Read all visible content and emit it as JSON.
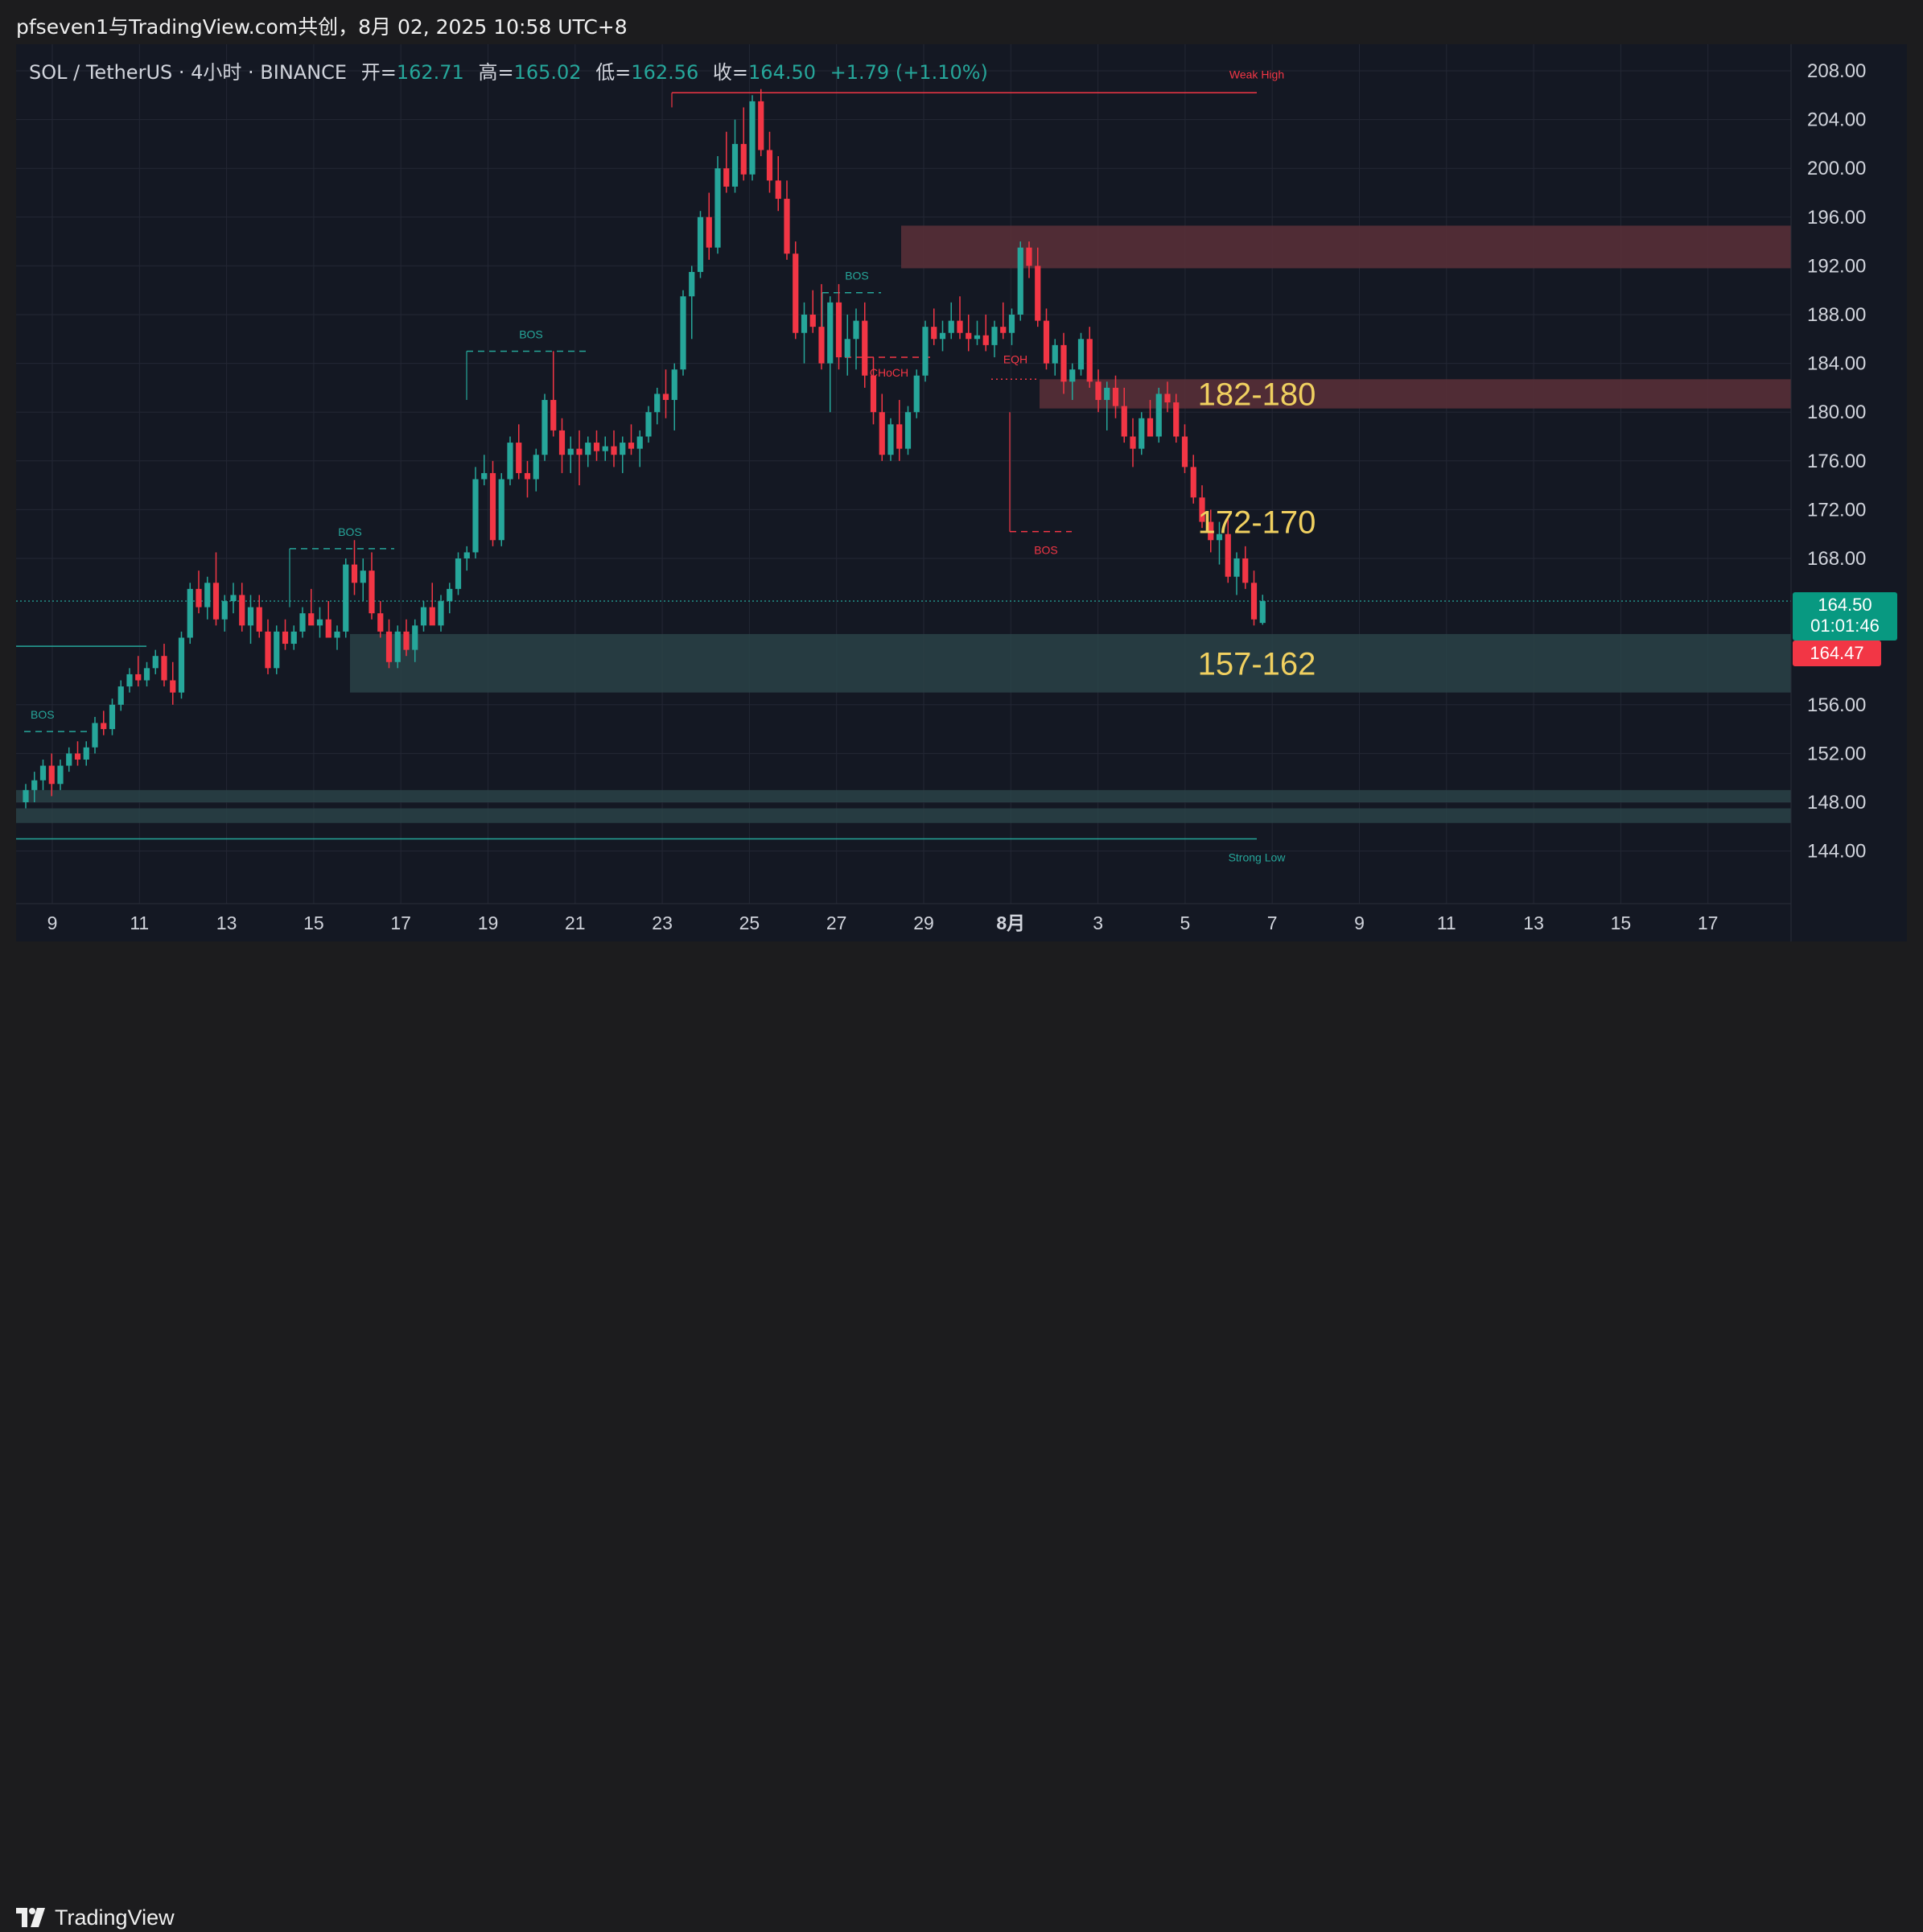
{
  "header": {
    "attribution": "pfseven1与TradingView.com共创，8月 02, 2025 10:58 UTC+8"
  },
  "legend": {
    "symbol": "SOL / TetherUS · 4小时 · BINANCE",
    "open_label": "开=",
    "open": "162.71",
    "high_label": "高=",
    "high": "165.02",
    "low_label": "低=",
    "low": "162.56",
    "close_label": "收=",
    "close": "164.50",
    "change": "+1.79 (+1.10%)"
  },
  "price_axis": {
    "labels": [
      "208.00",
      "204.00",
      "200.00",
      "196.00",
      "192.00",
      "188.00",
      "184.00",
      "180.00",
      "176.00",
      "172.00",
      "168.00",
      "156.00",
      "152.00",
      "148.00",
      "144.00"
    ],
    "current_price": "164.50",
    "countdown": "01:01:46",
    "bid_price": "164.47"
  },
  "time_axis": {
    "labels": [
      "9",
      "11",
      "13",
      "15",
      "17",
      "19",
      "21",
      "23",
      "25",
      "27",
      "29",
      "8月",
      "3",
      "5",
      "7",
      "9",
      "11",
      "13",
      "15",
      "17"
    ]
  },
  "colors": {
    "up": "#26a69a",
    "down": "#f23645",
    "zone_supply": "#5a3038",
    "zone_demand": "#2a4548",
    "zone_label": "#f0d060",
    "background": "#141823"
  },
  "footer": {
    "brand": "TradingView"
  },
  "chart_data": {
    "type": "candlestick",
    "symbol": "SOL/USDT",
    "interval": "4h",
    "ylim": [
      141.5,
      209.5
    ],
    "x_ticks": [
      "9",
      "11",
      "13",
      "15",
      "17",
      "19",
      "21",
      "23",
      "25",
      "27",
      "29",
      "8月",
      "3",
      "5",
      "7",
      "9",
      "11",
      "13",
      "15",
      "17"
    ],
    "candles": [
      [
        148.0,
        149.5,
        147.5,
        149.0
      ],
      [
        149.0,
        150.5,
        148.0,
        149.8
      ],
      [
        149.8,
        151.5,
        149.0,
        151.0
      ],
      [
        151.0,
        152.0,
        148.5,
        149.5
      ],
      [
        149.5,
        151.5,
        149.0,
        151.0
      ],
      [
        151.0,
        152.5,
        150.5,
        152.0
      ],
      [
        152.0,
        153.0,
        151.0,
        151.5
      ],
      [
        151.5,
        153.0,
        151.0,
        152.5
      ],
      [
        152.5,
        155.0,
        152.0,
        154.5
      ],
      [
        154.5,
        155.5,
        153.5,
        154.0
      ],
      [
        154.0,
        156.5,
        153.5,
        156.0
      ],
      [
        156.0,
        158.0,
        155.5,
        157.5
      ],
      [
        157.5,
        159.0,
        157.0,
        158.5
      ],
      [
        158.5,
        160.0,
        157.5,
        158.0
      ],
      [
        158.0,
        159.5,
        157.5,
        159.0
      ],
      [
        159.0,
        160.5,
        158.5,
        160.0
      ],
      [
        160.0,
        161.0,
        157.5,
        158.0
      ],
      [
        158.0,
        159.5,
        156.0,
        157.0
      ],
      [
        157.0,
        162.0,
        156.5,
        161.5
      ],
      [
        161.5,
        166.0,
        161.0,
        165.5
      ],
      [
        165.5,
        167.0,
        163.5,
        164.0
      ],
      [
        164.0,
        166.5,
        163.0,
        166.0
      ],
      [
        166.0,
        168.5,
        162.5,
        163.0
      ],
      [
        163.0,
        165.0,
        162.0,
        164.5
      ],
      [
        164.5,
        166.0,
        163.5,
        165.0
      ],
      [
        165.0,
        166.0,
        162.0,
        162.5
      ],
      [
        162.5,
        165.0,
        161.0,
        164.0
      ],
      [
        164.0,
        165.0,
        161.5,
        162.0
      ],
      [
        162.0,
        163.0,
        158.5,
        159.0
      ],
      [
        159.0,
        162.5,
        158.5,
        162.0
      ],
      [
        162.0,
        163.0,
        160.5,
        161.0
      ],
      [
        161.0,
        162.5,
        160.5,
        162.0
      ],
      [
        162.0,
        164.0,
        161.5,
        163.5
      ],
      [
        163.5,
        165.5,
        163.0,
        162.5
      ],
      [
        162.5,
        164.0,
        161.5,
        163.0
      ],
      [
        163.0,
        164.5,
        162.0,
        161.5
      ],
      [
        161.5,
        162.5,
        160.5,
        162.0
      ],
      [
        162.0,
        168.0,
        161.5,
        167.5
      ],
      [
        167.5,
        169.5,
        165.0,
        166.0
      ],
      [
        166.0,
        168.0,
        164.5,
        167.0
      ],
      [
        167.0,
        168.5,
        163.0,
        163.5
      ],
      [
        163.5,
        164.5,
        161.5,
        162.0
      ],
      [
        162.0,
        163.0,
        159.0,
        159.5
      ],
      [
        159.5,
        162.5,
        159.0,
        162.0
      ],
      [
        162.0,
        163.0,
        160.0,
        160.5
      ],
      [
        160.5,
        163.0,
        159.5,
        162.5
      ],
      [
        162.5,
        164.5,
        162.0,
        164.0
      ],
      [
        164.0,
        166.0,
        163.0,
        162.5
      ],
      [
        162.5,
        165.0,
        162.0,
        164.5
      ],
      [
        164.5,
        166.0,
        163.5,
        165.5
      ],
      [
        165.5,
        168.5,
        165.0,
        168.0
      ],
      [
        168.0,
        169.0,
        167.0,
        168.5
      ],
      [
        168.5,
        175.5,
        168.0,
        174.5
      ],
      [
        174.5,
        176.5,
        174.0,
        175.0
      ],
      [
        175.0,
        176.0,
        169.0,
        169.5
      ],
      [
        169.5,
        175.0,
        169.0,
        174.5
      ],
      [
        174.5,
        178.0,
        174.0,
        177.5
      ],
      [
        177.5,
        179.0,
        174.5,
        175.0
      ],
      [
        175.0,
        176.0,
        173.0,
        174.5
      ],
      [
        174.5,
        177.0,
        173.5,
        176.5
      ],
      [
        176.5,
        181.5,
        176.0,
        181.0
      ],
      [
        181.0,
        185.0,
        178.0,
        178.5
      ],
      [
        178.5,
        179.5,
        175.0,
        176.5
      ],
      [
        176.5,
        178.0,
        175.0,
        177.0
      ],
      [
        177.0,
        178.5,
        174.0,
        176.5
      ],
      [
        176.5,
        178.0,
        175.5,
        177.5
      ],
      [
        177.5,
        178.5,
        176.0,
        176.8
      ],
      [
        176.8,
        178.0,
        176.0,
        177.2
      ],
      [
        177.2,
        178.5,
        175.5,
        176.5
      ],
      [
        176.5,
        178.0,
        175.0,
        177.5
      ],
      [
        177.5,
        179.0,
        176.5,
        177.0
      ],
      [
        177.0,
        178.5,
        175.5,
        178.0
      ],
      [
        178.0,
        180.5,
        177.5,
        180.0
      ],
      [
        180.0,
        182.0,
        179.0,
        181.5
      ],
      [
        181.5,
        183.5,
        179.5,
        181.0
      ],
      [
        181.0,
        184.0,
        178.5,
        183.5
      ],
      [
        183.5,
        190.0,
        183.0,
        189.5
      ],
      [
        189.5,
        192.0,
        186.0,
        191.5
      ],
      [
        191.5,
        196.5,
        191.0,
        196.0
      ],
      [
        196.0,
        198.0,
        192.5,
        193.5
      ],
      [
        193.5,
        201.0,
        193.0,
        200.0
      ],
      [
        200.0,
        203.0,
        198.0,
        198.5
      ],
      [
        198.5,
        204.0,
        198.0,
        202.0
      ],
      [
        202.0,
        205.0,
        199.0,
        199.5
      ],
      [
        199.5,
        206.0,
        199.0,
        205.5
      ],
      [
        205.5,
        206.5,
        201.0,
        201.5
      ],
      [
        201.5,
        203.0,
        198.0,
        199.0
      ],
      [
        199.0,
        201.0,
        196.5,
        197.5
      ],
      [
        197.5,
        199.0,
        192.5,
        193.0
      ],
      [
        193.0,
        194.0,
        186.0,
        186.5
      ],
      [
        186.5,
        189.0,
        184.0,
        188.0
      ],
      [
        188.0,
        190.0,
        186.5,
        187.0
      ],
      [
        187.0,
        190.5,
        183.5,
        184.0
      ],
      [
        184.0,
        189.5,
        180.0,
        189.0
      ],
      [
        189.0,
        190.5,
        183.5,
        184.5
      ],
      [
        184.5,
        188.0,
        183.0,
        186.0
      ],
      [
        186.0,
        188.5,
        183.5,
        187.5
      ],
      [
        187.5,
        189.0,
        182.0,
        183.0
      ],
      [
        183.0,
        184.5,
        179.0,
        180.0
      ],
      [
        180.0,
        181.5,
        176.0,
        176.5
      ],
      [
        176.5,
        179.5,
        176.0,
        179.0
      ],
      [
        179.0,
        181.0,
        176.0,
        177.0
      ],
      [
        177.0,
        180.5,
        176.5,
        180.0
      ],
      [
        180.0,
        183.5,
        179.5,
        183.0
      ],
      [
        183.0,
        187.5,
        182.5,
        187.0
      ],
      [
        187.0,
        188.5,
        185.5,
        186.0
      ],
      [
        186.0,
        187.5,
        185.0,
        186.5
      ],
      [
        186.5,
        189.0,
        186.0,
        187.5
      ],
      [
        187.5,
        189.5,
        186.0,
        186.5
      ],
      [
        186.5,
        188.0,
        185.0,
        186.0
      ],
      [
        186.0,
        187.5,
        185.5,
        186.3
      ],
      [
        186.3,
        188.0,
        185.0,
        185.5
      ],
      [
        185.5,
        187.5,
        184.5,
        187.0
      ],
      [
        187.0,
        189.0,
        186.0,
        186.5
      ],
      [
        186.5,
        188.5,
        185.5,
        188.0
      ],
      [
        188.0,
        194.0,
        187.5,
        193.5
      ],
      [
        193.5,
        194.0,
        191.0,
        192.0
      ],
      [
        192.0,
        193.5,
        187.0,
        187.5
      ],
      [
        187.5,
        188.5,
        183.5,
        184.0
      ],
      [
        184.0,
        186.0,
        183.0,
        185.5
      ],
      [
        185.5,
        186.5,
        181.5,
        182.5
      ],
      [
        182.5,
        184.0,
        181.0,
        183.5
      ],
      [
        183.5,
        186.5,
        183.0,
        186.0
      ],
      [
        186.0,
        187.0,
        182.0,
        182.5
      ],
      [
        182.5,
        183.5,
        180.0,
        181.0
      ],
      [
        181.0,
        182.5,
        178.5,
        182.0
      ],
      [
        182.0,
        183.0,
        179.5,
        180.5
      ],
      [
        180.5,
        182.0,
        177.5,
        178.0
      ],
      [
        178.0,
        179.5,
        175.5,
        177.0
      ],
      [
        177.0,
        180.0,
        176.5,
        179.5
      ],
      [
        179.5,
        181.0,
        178.0,
        178.0
      ],
      [
        178.0,
        182.0,
        177.5,
        181.5
      ],
      [
        181.5,
        182.5,
        180.0,
        180.8
      ],
      [
        180.8,
        181.5,
        177.5,
        178.0
      ],
      [
        178.0,
        179.0,
        175.0,
        175.5
      ],
      [
        175.5,
        176.5,
        172.5,
        173.0
      ],
      [
        173.0,
        174.0,
        170.5,
        171.0
      ],
      [
        171.0,
        172.0,
        168.5,
        169.5
      ],
      [
        169.5,
        171.0,
        167.5,
        170.0
      ],
      [
        170.0,
        171.5,
        166.0,
        166.5
      ],
      [
        166.5,
        168.5,
        165.0,
        168.0
      ],
      [
        168.0,
        169.0,
        165.5,
        166.0
      ],
      [
        166.0,
        167.0,
        162.5,
        163.0
      ],
      [
        162.71,
        165.02,
        162.56,
        164.5
      ]
    ],
    "horizontal_zones": [
      {
        "label": "",
        "low": 191.8,
        "high": 195.3
      },
      {
        "label": "182-180",
        "low": 180.3,
        "high": 182.7
      },
      {
        "label": "157-162",
        "low": 157.0,
        "high": 161.8
      },
      {
        "label": "",
        "low": 148.0,
        "high": 149.0
      },
      {
        "label": "",
        "low": 146.3,
        "high": 147.5
      }
    ],
    "level_labels": [
      {
        "label": "172-170",
        "price": 171.0
      }
    ],
    "structure_labels": [
      "BOS",
      "BOS",
      "BOS",
      "BOS",
      "CHoCH",
      "EQH",
      "BOS",
      "Weak High",
      "Strong Low"
    ],
    "current_price": 164.5,
    "bid_price": 164.47
  }
}
